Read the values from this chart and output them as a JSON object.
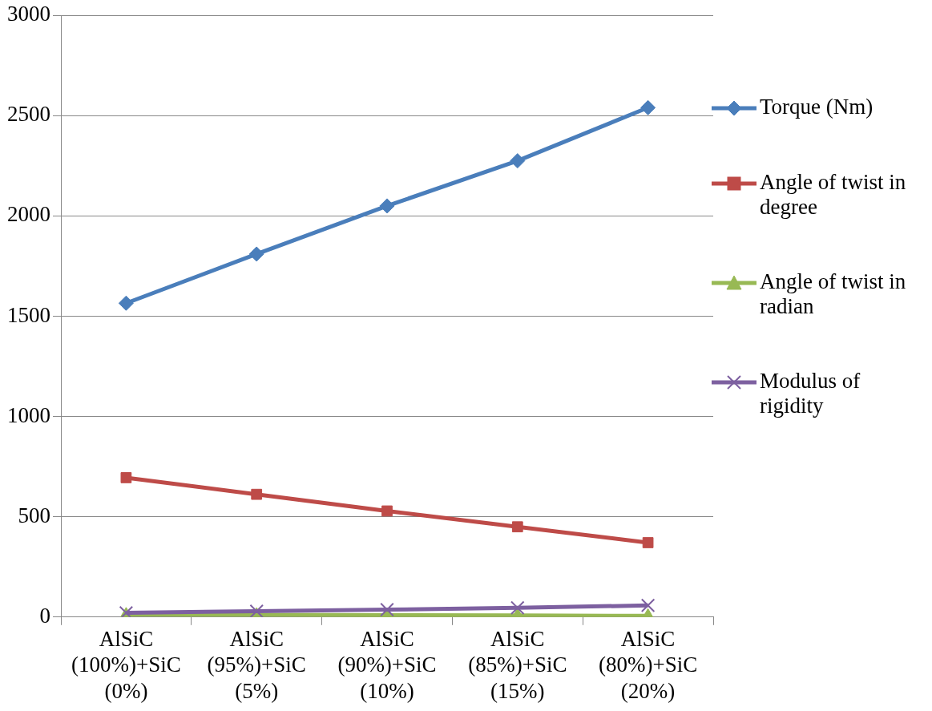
{
  "chart_data": {
    "type": "line",
    "categories": [
      "AlSiC (100%)+SiC (0%)",
      "AlSiC (95%)+SiC (5%)",
      "AlSiC (90%)+SiC (10%)",
      "AlSiC (85%)+SiC (15%)",
      "AlSiC (80%)+SiC (20%)"
    ],
    "series": [
      {
        "name": "Torque (Nm)",
        "color": "#4a7ebb",
        "marker": "diamond",
        "values": [
          1565,
          1810,
          2050,
          2275,
          2540
        ]
      },
      {
        "name": "Angle of twist in degree",
        "color": "#be4b48",
        "marker": "square",
        "values": [
          695,
          612,
          529,
          450,
          371
        ]
      },
      {
        "name": "Angle of twist in radian",
        "color": "#98b954",
        "marker": "triangle",
        "values": [
          12,
          11,
          9,
          8,
          6
        ]
      },
      {
        "name": "Modulus of rigidity",
        "color": "#7d60a0",
        "marker": "cross",
        "values": [
          21,
          29,
          37,
          46,
          58
        ]
      }
    ],
    "ylim": [
      0,
      3000
    ],
    "yticks": [
      0,
      500,
      1000,
      1500,
      2000,
      2500,
      3000
    ],
    "grid": "y",
    "legend": "right"
  }
}
